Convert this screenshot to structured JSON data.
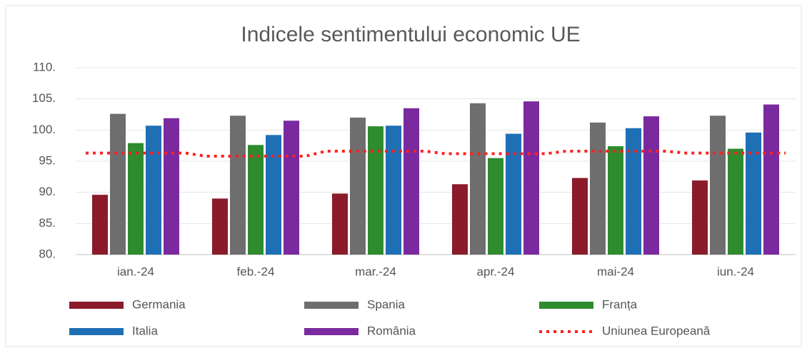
{
  "chart_data": {
    "type": "bar",
    "title": "Indicele sentimentului economic UE",
    "categories": [
      "ian.-24",
      "feb.-24",
      "mar.-24",
      "apr.-24",
      "mai-24",
      "iun.-24"
    ],
    "series": [
      {
        "name": "Germania",
        "color": "#8b1a2b",
        "values": [
          89.6,
          89.0,
          89.8,
          91.3,
          92.3,
          91.9
        ]
      },
      {
        "name": "Spania",
        "color": "#6e6e6e",
        "values": [
          102.6,
          102.3,
          102.0,
          104.3,
          101.2,
          102.3
        ]
      },
      {
        "name": "Franța",
        "color": "#2e8b2e",
        "values": [
          97.9,
          97.6,
          100.6,
          95.5,
          97.4,
          97.0
        ]
      },
      {
        "name": "Italia",
        "color": "#1f6fb5",
        "values": [
          100.7,
          99.2,
          100.7,
          99.4,
          100.3,
          99.6
        ]
      },
      {
        "name": "România",
        "color": "#7a2a9e",
        "values": [
          101.9,
          101.5,
          103.5,
          104.6,
          102.2,
          104.1
        ]
      },
      {
        "name": "Uniunea Europeană",
        "color": "#ff2020",
        "type": "line",
        "values": [
          96.3,
          95.8,
          96.6,
          96.2,
          96.6,
          96.3
        ]
      }
    ],
    "ylim": [
      80,
      110
    ],
    "yticks": [
      {
        "value": 80,
        "label": "80."
      },
      {
        "value": 85,
        "label": "85."
      },
      {
        "value": 90,
        "label": "90."
      },
      {
        "value": 95,
        "label": "95."
      },
      {
        "value": 100,
        "label": "100."
      },
      {
        "value": 105,
        "label": "105."
      },
      {
        "value": 110,
        "label": "110."
      }
    ],
    "grid": true
  }
}
